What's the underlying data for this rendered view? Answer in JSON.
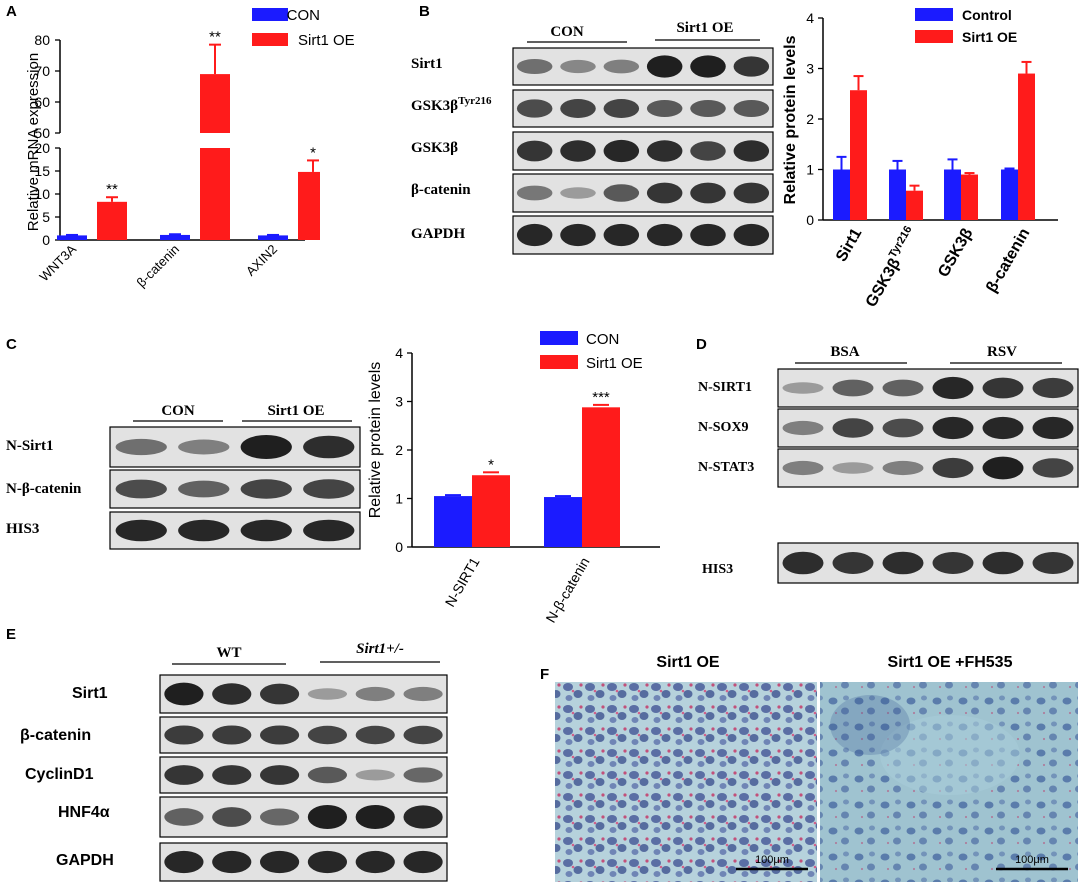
{
  "colors": {
    "con": "#1b1bff",
    "oe": "#ff1b1b",
    "band": "#1f1f1f",
    "blot_bg": "#e2e2e2",
    "tissue": "#a9c8d4",
    "stain": "#3a4f8c",
    "pink": "#c2507a"
  },
  "panels": {
    "a": "A",
    "b": "B",
    "c": "C",
    "d": "D",
    "e": "E",
    "f": "F"
  },
  "blot_b": {
    "groups": [
      "CON",
      "Sirt1 OE"
    ],
    "rows": [
      "Sirt1",
      "GSK3β",
      "GSK3β",
      "β-catenin",
      "GAPDH"
    ],
    "row2_sup": "Tyr216"
  },
  "blot_c": {
    "groups": [
      "CON",
      "Sirt1 OE"
    ],
    "rows": [
      "N-Sirt1",
      "N-β-catenin",
      "HIS3"
    ]
  },
  "blot_d": {
    "groups": [
      "BSA",
      "RSV"
    ],
    "rows": [
      "N-SIRT1",
      "N-SOX9",
      "N-STAT3",
      "HIS3"
    ]
  },
  "blot_e": {
    "groups": [
      "WT",
      "Sirt1+/-"
    ],
    "rows": [
      "Sirt1",
      "β-catenin",
      "CyclinD1",
      "HNF4α",
      "GAPDH"
    ]
  },
  "micro_f": {
    "titles": [
      "Sirt1 OE",
      "Sirt1 OE +FH535"
    ],
    "scale": "100μm"
  },
  "chart_data": [
    {
      "type": "bar",
      "panel": "A",
      "ylabel": "Relative mRNA expression",
      "categories": [
        "WNT3A",
        "β-catenin",
        "AXIN2"
      ],
      "series": [
        {
          "name": "CON",
          "values": [
            1.0,
            1.1,
            1.0
          ],
          "errors": [
            0.1,
            0.15,
            0.1
          ]
        },
        {
          "name": "Sirt1 OE",
          "values": [
            8.3,
            69,
            14.8
          ],
          "errors": [
            1.0,
            9.5,
            2.5
          ]
        }
      ],
      "significance": [
        "**",
        "**",
        "*"
      ],
      "yticks_lower": [
        "0",
        "5",
        "10",
        "15",
        "20"
      ],
      "yticks_upper": [
        "50",
        "60",
        "70",
        "80"
      ],
      "broken_axis": {
        "lower": [
          0,
          20
        ],
        "upper": [
          50,
          80
        ]
      }
    },
    {
      "type": "bar",
      "panel": "B",
      "ylabel": "Relative protein levels",
      "categories": [
        "Sirt1",
        "GSK3β",
        "GSK3β",
        "β-catenin"
      ],
      "cat2_sup": "Tyr216",
      "series": [
        {
          "name": "Control",
          "values": [
            1.0,
            1.0,
            1.0,
            1.0
          ],
          "errors": [
            0.25,
            0.17,
            0.2,
            0.02
          ]
        },
        {
          "name": "Sirt1 OE",
          "values": [
            2.57,
            0.58,
            0.9,
            2.9
          ],
          "errors": [
            0.28,
            0.1,
            0.03,
            0.23
          ]
        }
      ],
      "yticks": [
        "0",
        "1",
        "2",
        "3",
        "4"
      ],
      "ylim": [
        0,
        4
      ]
    },
    {
      "type": "bar",
      "panel": "C",
      "ylabel": "Relative protein levels",
      "categories": [
        "N-SIRT1",
        "N-β-catenin"
      ],
      "series": [
        {
          "name": "CON",
          "values": [
            1.05,
            1.03
          ],
          "errors": [
            0.02,
            0.02
          ]
        },
        {
          "name": "Sirt1 OE",
          "values": [
            1.48,
            2.88
          ],
          "errors": [
            0.06,
            0.05
          ]
        }
      ],
      "significance": [
        "*",
        "***"
      ],
      "yticks": [
        "0",
        "1",
        "2",
        "3",
        "4"
      ],
      "ylim": [
        0,
        4
      ]
    }
  ]
}
